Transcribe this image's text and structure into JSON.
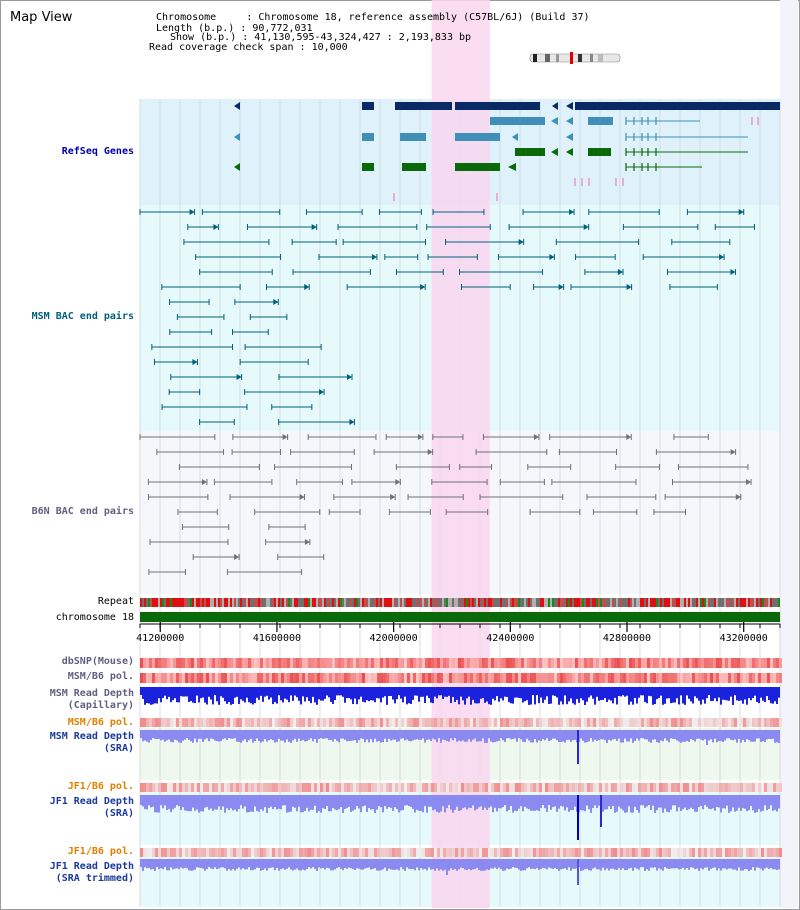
{
  "title": "Map View",
  "header": {
    "chromosome_label": "Chromosome",
    "chromosome_value": "Chromosome 18, reference assembly (C57BL/6J) (Build 37)",
    "length_label": "Length (b.p.)",
    "length_value": "90,772,031",
    "show_label": "Show (b.p.)",
    "show_value": "41,130,595-43,324,427 : 2,193,833 bp",
    "coverage_label": "Read coverage check span",
    "coverage_value": "10,000"
  },
  "tracks": {
    "refseq": "RefSeq Genes",
    "msm_bac": "MSM BAC end pairs",
    "b6n_bac": "B6N BAC end pairs",
    "repeat": "Repeat",
    "chromosome": "chromosome 18",
    "dbsnp": "dbSNP(Mouse)",
    "msm_b6_pol_1": "MSM/B6 pol.",
    "msm_read_depth_cap_1": "MSM Read Depth",
    "msm_read_depth_cap_2": "(Capillary)",
    "msm_b6_pol_2": "MSM/B6 pol.",
    "msm_read_depth_sra_1": "MSM Read Depth",
    "msm_read_depth_sra_2": "(SRA)",
    "jf1_b6_pol_1": "JF1/B6 pol.",
    "jf1_read_depth_sra_1": "JF1 Read Depth",
    "jf1_read_depth_sra_2": "(SRA)",
    "jf1_b6_pol_2": "JF1/B6 pol.",
    "jf1_read_depth_trim_1": "JF1 Read Depth",
    "jf1_read_depth_trim_2": "(SRA trimmed)"
  },
  "axis": {
    "start": 41130595,
    "end": 43324427,
    "ticks": [
      "41200000",
      "41600000",
      "42000000",
      "42400000",
      "42800000",
      "43200000"
    ],
    "highlight": [
      42130000,
      42330000
    ]
  },
  "colors": {
    "refseq_bg": "#dff2fb",
    "msm_bac_bg": "#e6f9fb",
    "b6n_bac_bg": "#f6f7fa",
    "highlight": "#f9d7ef",
    "gene_navy": "#0a2a66",
    "gene_teal": "#3f8fb8",
    "gene_green": "#0a6a0a",
    "msm_bac": "#00607a",
    "b6n_bac": "#707078",
    "chromosome": "#0a6a0a",
    "depth_capillary": "#1a22dd",
    "depth_sra": "#8a8af0"
  }
}
